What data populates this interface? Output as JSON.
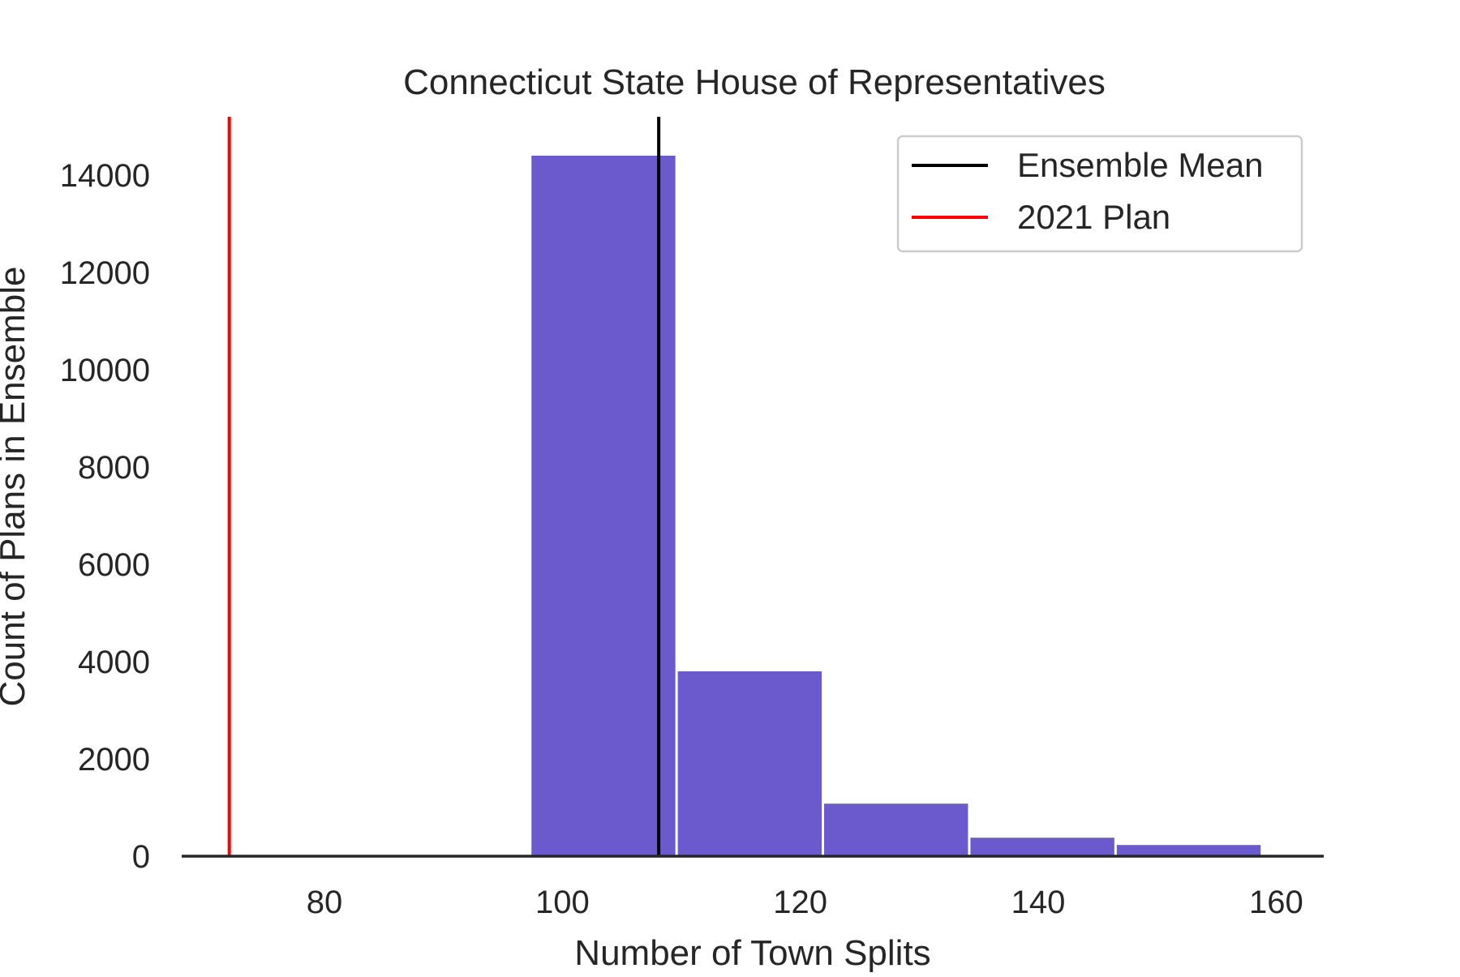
{
  "chart_data": {
    "type": "bar",
    "title": "Connecticut State House of Representatives",
    "xlabel": "Number of Town Splits",
    "ylabel": "Count of Plans in Ensemble",
    "xlim": [
      68,
      164
    ],
    "ylim": [
      0,
      15200
    ],
    "xticks": [
      80,
      100,
      120,
      140,
      160
    ],
    "yticks": [
      0,
      2000,
      4000,
      6000,
      8000,
      10000,
      12000,
      14000
    ],
    "bins": [
      {
        "x0": 97.3,
        "x1": 109.6,
        "count": 14400
      },
      {
        "x0": 109.6,
        "x1": 121.9,
        "count": 3800
      },
      {
        "x0": 121.9,
        "x1": 134.2,
        "count": 1080
      },
      {
        "x0": 134.2,
        "x1": 146.5,
        "count": 380
      },
      {
        "x0": 146.5,
        "x1": 158.8,
        "count": 230
      }
    ],
    "bar_color": "#6a5acd",
    "vlines": [
      {
        "name": "Ensemble Mean",
        "x": 108.1,
        "color": "#000000"
      },
      {
        "name": "2021 Plan",
        "x": 72.0,
        "color": "#ff0000"
      }
    ],
    "legend_position": "top-right",
    "grid": false
  }
}
